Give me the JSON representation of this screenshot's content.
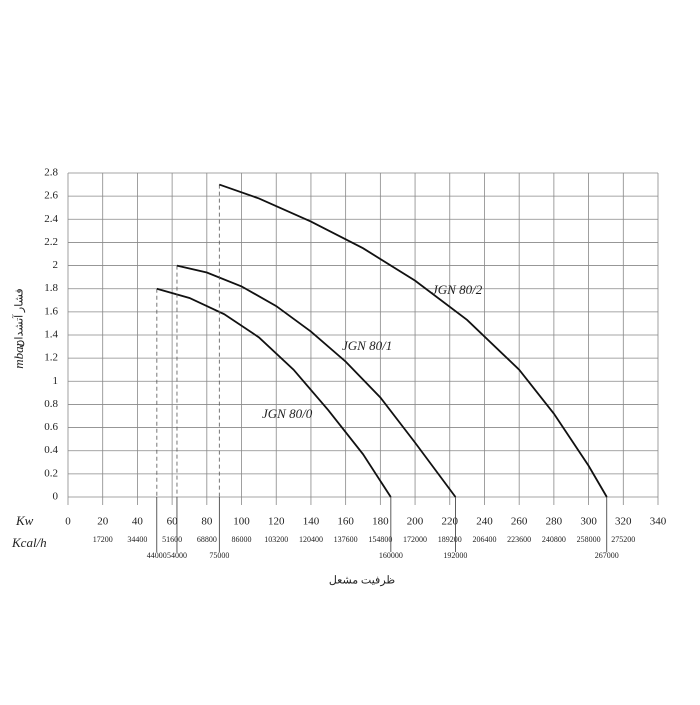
{
  "chart_data": {
    "type": "line",
    "x_axis_label": "Kw",
    "x2_axis_label": "Kcal/h",
    "y_axis_label": "mbar",
    "y_axis_title": "فشار آتشدان",
    "x_title": "ظرفیت مشعل",
    "xlim": [
      0,
      340
    ],
    "xticks": [
      0,
      20,
      40,
      60,
      80,
      100,
      120,
      140,
      160,
      180,
      200,
      220,
      240,
      260,
      280,
      300,
      320,
      340
    ],
    "x2lim": [
      0,
      292400
    ],
    "x2ticks": [
      17200,
      34400,
      51600,
      68800,
      86000,
      103200,
      120400,
      137600,
      154800,
      172000,
      189200,
      206400,
      223600,
      240800,
      258000,
      275200
    ],
    "markers": [
      44000,
      54000,
      75000,
      160000,
      192000,
      267000
    ],
    "ylim": [
      0,
      2.8
    ],
    "yticks": [
      0,
      0.2,
      0.4,
      0.6,
      0.8,
      1,
      1.2,
      1.4,
      1.6,
      1.8,
      2,
      2.2,
      2.4,
      2.6,
      2.8
    ],
    "grid": true,
    "series": [
      {
        "name": "JGN 80/0",
        "color": "#111111",
        "x": [
          51.2,
          70,
          90,
          110,
          130,
          150,
          170,
          186
        ],
        "values": [
          1.8,
          1.72,
          1.58,
          1.38,
          1.1,
          0.75,
          0.37,
          0
        ]
      },
      {
        "name": "JGN 80/1",
        "color": "#111111",
        "x": [
          62.8,
          80,
          100,
          120,
          140,
          160,
          180,
          200,
          223.3
        ],
        "values": [
          2.0,
          1.94,
          1.82,
          1.65,
          1.43,
          1.17,
          0.86,
          0.47,
          0
        ]
      },
      {
        "name": "JGN 80/2",
        "color": "#111111",
        "x": [
          87.2,
          110,
          140,
          170,
          200,
          230,
          260,
          280,
          300,
          310.5
        ],
        "values": [
          2.7,
          2.58,
          2.38,
          2.15,
          1.87,
          1.53,
          1.1,
          0.72,
          0.27,
          0
        ]
      }
    ]
  }
}
